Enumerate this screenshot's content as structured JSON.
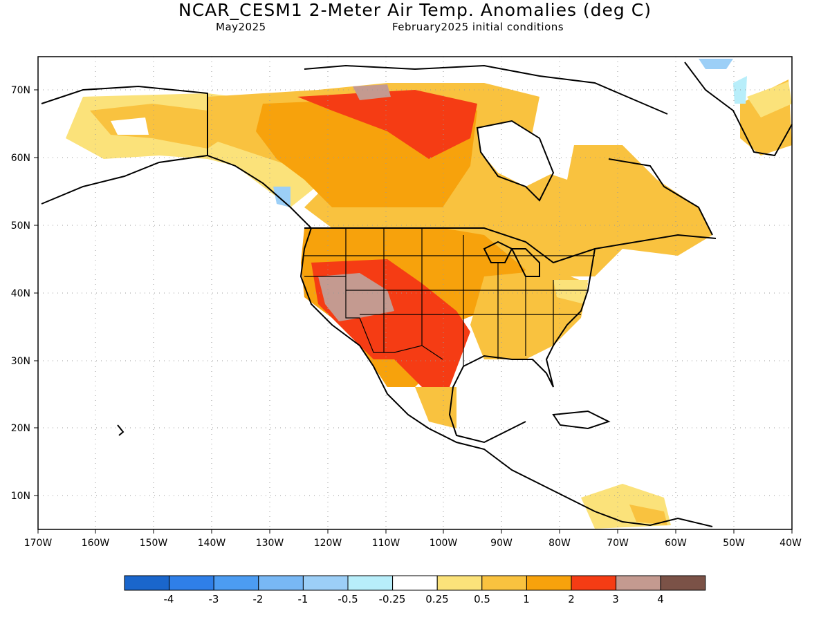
{
  "header": {
    "title": "NCAR_CESM1 2-Meter Air Temp. Anomalies (deg C)",
    "valid_month": "May2025",
    "init_conditions": "February2025 initial conditions"
  },
  "map": {
    "lon_ticks": [
      "170W",
      "160W",
      "150W",
      "140W",
      "130W",
      "120W",
      "110W",
      "100W",
      "90W",
      "80W",
      "70W",
      "60W",
      "50W",
      "40W"
    ],
    "lat_ticks": [
      "10N",
      "20N",
      "30N",
      "40N",
      "50N",
      "60N",
      "70N"
    ]
  },
  "colorbar": {
    "labels": [
      "-4",
      "-3",
      "-2",
      "-1",
      "-0.5",
      "-0.25",
      "0.25",
      "0.5",
      "1",
      "2",
      "3",
      "4"
    ],
    "colors": [
      "#1a66cc",
      "#2f7fe8",
      "#4c9cf2",
      "#78b8f5",
      "#9ccff7",
      "#b8eefa",
      "#ffffff",
      "#fbe27a",
      "#f9c23f",
      "#f7a20c",
      "#f53c14",
      "#c49a90",
      "#7b5247"
    ]
  }
}
